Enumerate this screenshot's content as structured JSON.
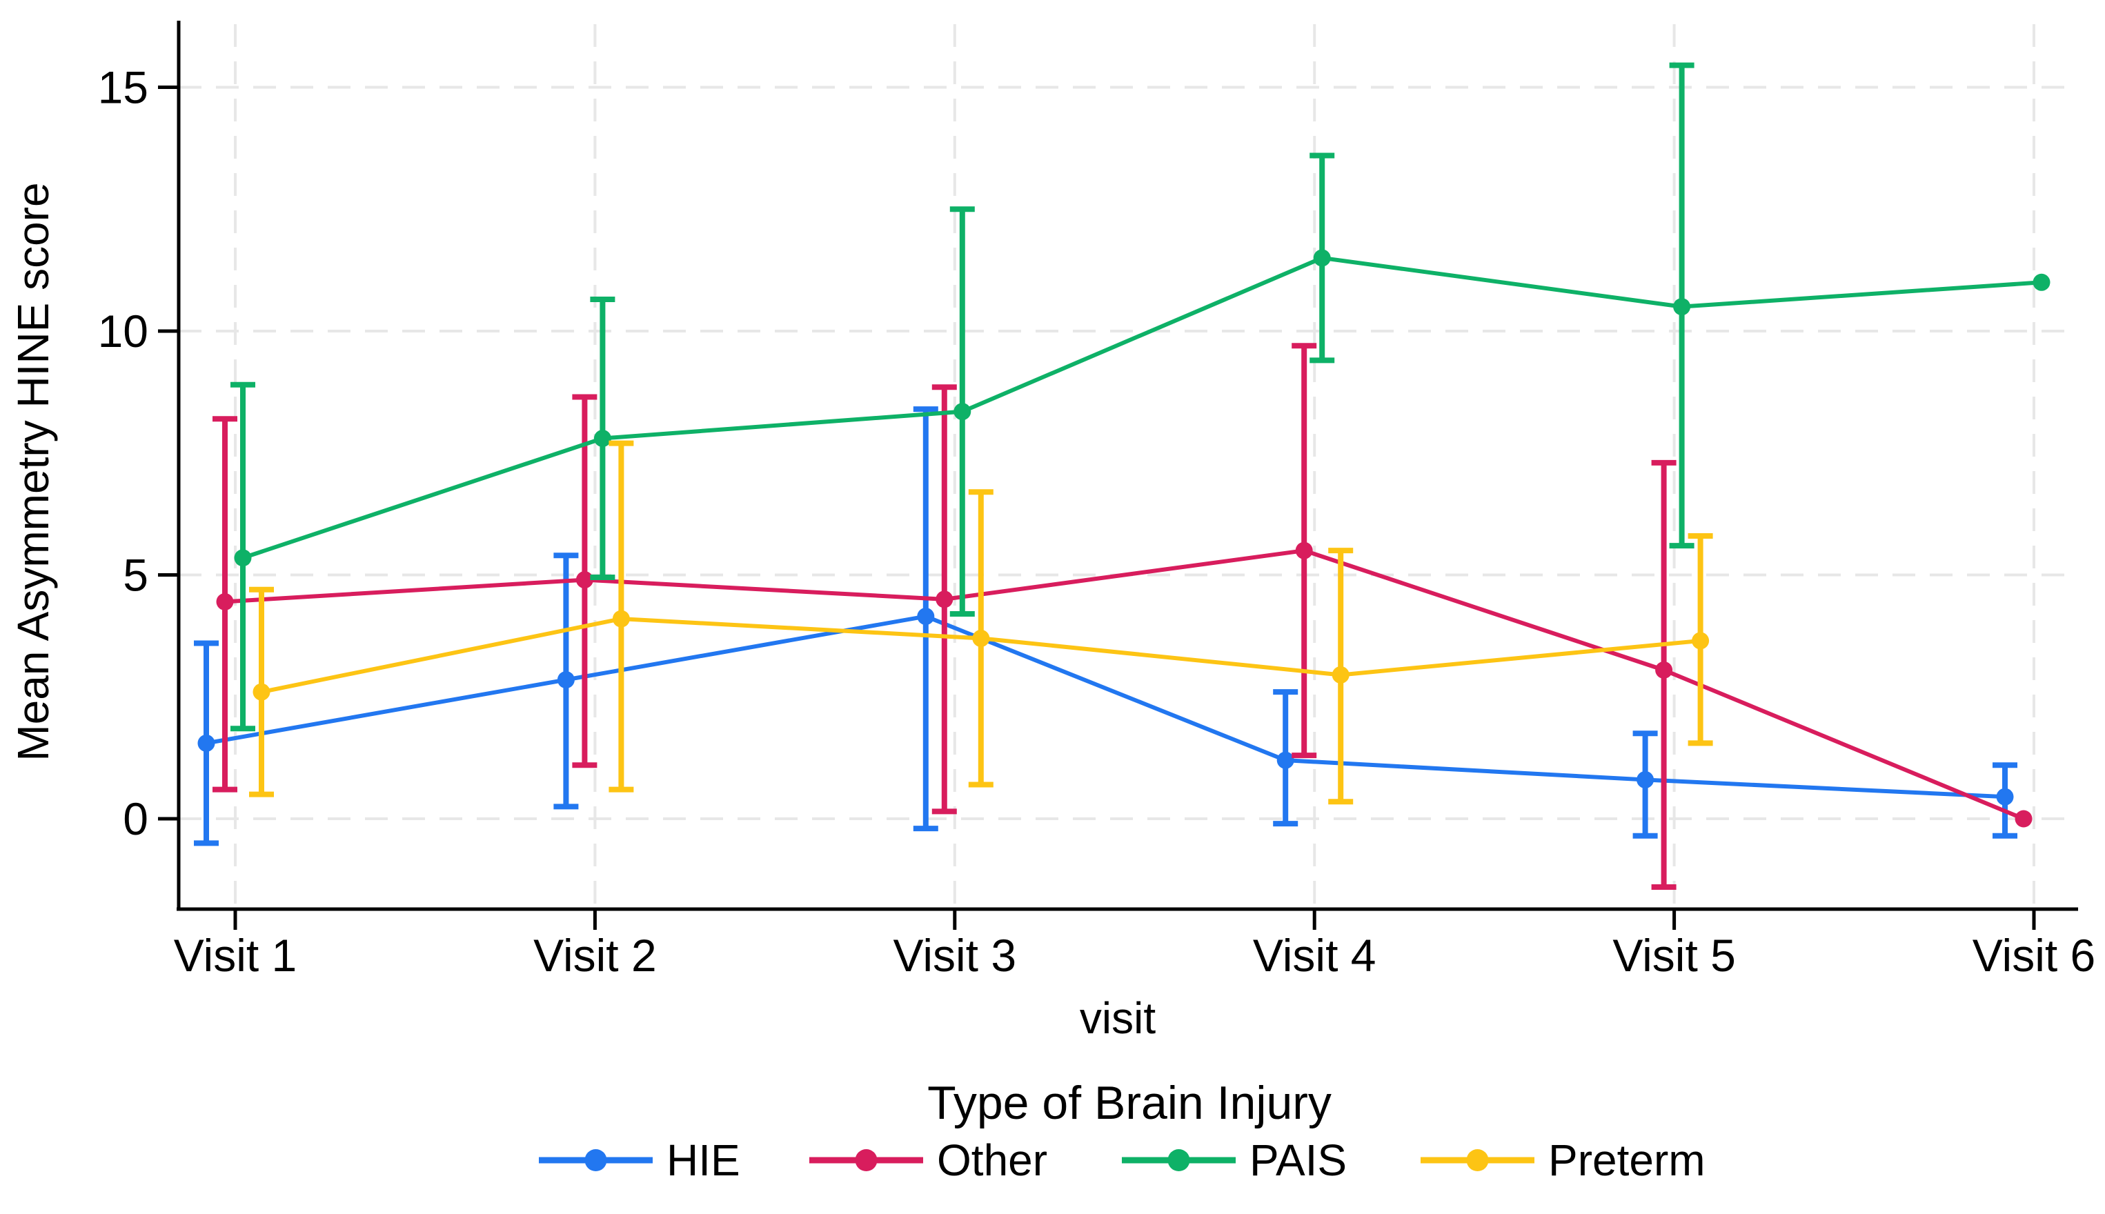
{
  "figure": {
    "y_axis_title": "Mean Asymmetry HINE score",
    "x_axis_title": "visit",
    "legend_title": "Type of Brain Injury"
  },
  "chart_data": {
    "type": "line",
    "title": "",
    "xlabel": "visit",
    "ylabel": "Mean Asymmetry HINE score",
    "x": [
      "Visit 1",
      "Visit 2",
      "Visit 3",
      "Visit 4",
      "Visit 5",
      "Visit 6"
    ],
    "yticks": [
      0,
      5,
      10,
      15
    ],
    "ylim": [
      -2.0,
      16.3
    ],
    "grid": "dashed",
    "error_bars": true,
    "legend_position": "bottom",
    "legend_title": "Type of Brain Injury",
    "dodge_offsets": [
      -42,
      -15,
      11,
      38
    ],
    "series": [
      {
        "name": "HIE",
        "color": "#2277F0",
        "values": [
          1.55,
          2.85,
          4.15,
          1.2,
          0.8,
          0.45
        ],
        "ci_low": [
          -0.5,
          0.25,
          -0.2,
          -0.1,
          -0.35,
          -0.35
        ],
        "ci_high": [
          3.6,
          5.4,
          8.4,
          2.6,
          1.75,
          1.1
        ]
      },
      {
        "name": "Other",
        "color": "#D81D5D",
        "values": [
          4.45,
          4.9,
          4.5,
          5.5,
          3.05,
          0.0
        ],
        "ci_low": [
          0.6,
          1.1,
          0.15,
          1.3,
          -1.4,
          null
        ],
        "ci_high": [
          8.2,
          8.65,
          8.85,
          9.7,
          7.3,
          null
        ]
      },
      {
        "name": "PAIS",
        "color": "#0EB167",
        "values": [
          5.35,
          7.8,
          8.35,
          11.5,
          10.5,
          11.0
        ],
        "ci_low": [
          1.85,
          4.95,
          4.2,
          9.4,
          5.6,
          null
        ],
        "ci_high": [
          8.9,
          10.65,
          12.5,
          13.6,
          15.45,
          null
        ]
      },
      {
        "name": "Preterm",
        "color": "#FDC414",
        "values": [
          2.6,
          4.1,
          3.7,
          2.95,
          3.65,
          null
        ],
        "ci_low": [
          0.5,
          0.6,
          0.7,
          0.35,
          1.55,
          null
        ],
        "ci_high": [
          4.7,
          7.7,
          6.7,
          5.5,
          5.8,
          null
        ]
      }
    ],
    "style": {
      "grid_color": "#E7E7E7",
      "axis_color": "#000000",
      "background": "#FFFFFF"
    }
  }
}
